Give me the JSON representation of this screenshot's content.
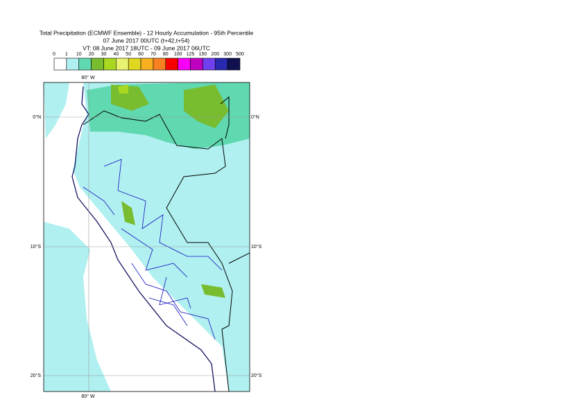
{
  "header": {
    "title_lines": [
      "Total Precipitation (ECMWF Ensemble) - 12 Hourly Accumulation - 95th Percentile",
      "07 June 2017 00UTC (t+42,t+54)",
      "VT: 08 June 2017 18UTC - 09 June 2017 06UTC"
    ]
  },
  "legend": {
    "ticks": [
      0,
      1,
      10,
      20,
      30,
      40,
      50,
      60,
      70,
      80,
      100,
      125,
      150,
      200,
      300,
      500
    ],
    "colors": [
      "#ffffff",
      "#b0f0f0",
      "#60d8b0",
      "#78bc30",
      "#a8d820",
      "#e8f470",
      "#e0d820",
      "#f8b020",
      "#f88020",
      "#f80000",
      "#f800f8",
      "#c000c0",
      "#7040f0",
      "#2828b0",
      "#101050"
    ]
  },
  "map": {
    "lon_label": "80° W",
    "lat_labels": [
      "0°N",
      "10°S",
      "20°S"
    ]
  }
}
